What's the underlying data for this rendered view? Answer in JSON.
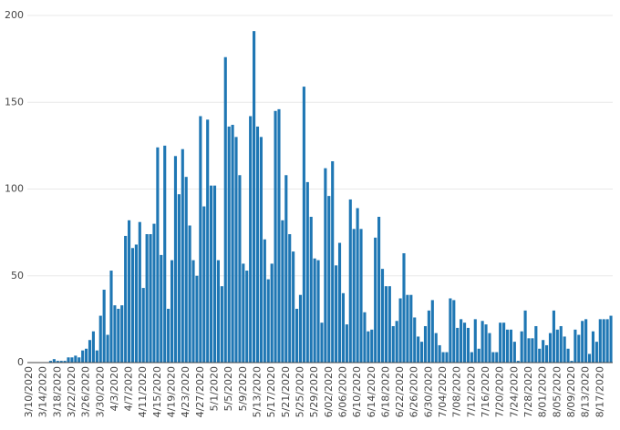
{
  "chart_data": {
    "type": "bar",
    "categories": [
      "3/10/2020",
      null,
      null,
      null,
      "3/14/2020",
      null,
      null,
      null,
      "3/18/2020",
      null,
      null,
      null,
      "3/22/2020",
      null,
      null,
      null,
      "3/26/2020",
      null,
      null,
      null,
      "3/30/2020",
      null,
      null,
      null,
      "4/3/2020",
      null,
      null,
      null,
      "4/7/2020",
      null,
      null,
      null,
      "4/11/2020",
      null,
      null,
      null,
      "4/15/2020",
      null,
      null,
      null,
      "4/19/2020",
      null,
      null,
      null,
      "4/23/2020",
      null,
      null,
      null,
      "4/27/2020",
      null,
      null,
      null,
      "5/1/2020",
      null,
      null,
      null,
      "5/5/2020",
      null,
      null,
      null,
      "5/9/2020",
      null,
      null,
      null,
      "5/13/2020",
      null,
      null,
      null,
      "5/17/2020",
      null,
      null,
      null,
      "5/21/2020",
      null,
      null,
      null,
      "5/25/2020",
      null,
      null,
      null,
      "5/29/2020",
      null,
      null,
      null,
      "6/02/2020",
      null,
      null,
      null,
      "6/06/2020",
      null,
      null,
      null,
      "6/10/2020",
      null,
      null,
      null,
      "6/14/2020",
      null,
      null,
      null,
      "6/18/2020",
      null,
      null,
      null,
      "6/22/2020",
      null,
      null,
      null,
      "6/26/2020",
      null,
      null,
      null,
      "6/30/2020",
      null,
      null,
      null,
      "7/04/2020",
      null,
      null,
      null,
      "7/08/2020",
      null,
      null,
      null,
      "7/12/2020",
      null,
      null,
      null,
      "7/16/2020",
      null,
      null,
      null,
      "7/20/2020",
      null,
      null,
      null,
      "7/24/2020",
      null,
      null,
      null,
      "7/28/2020",
      null,
      null,
      null,
      "8/01/2020",
      null,
      null,
      null,
      "8/05/2020",
      null,
      null,
      null,
      "8/09/2020",
      null,
      null,
      null,
      "8/13/2020",
      null,
      null,
      null,
      "8/17/2020",
      null,
      null,
      null
    ],
    "values": [
      0,
      0,
      0,
      0,
      0,
      0,
      1,
      2,
      1,
      1,
      1,
      3,
      3,
      4,
      3,
      7,
      8,
      13,
      18,
      7,
      27,
      42,
      16,
      53,
      33,
      31,
      33,
      73,
      82,
      66,
      68,
      81,
      43,
      74,
      74,
      80,
      124,
      62,
      125,
      31,
      59,
      119,
      97,
      123,
      107,
      79,
      59,
      50,
      142,
      90,
      140,
      102,
      102,
      59,
      44,
      176,
      136,
      137,
      130,
      108,
      57,
      53,
      142,
      191,
      136,
      130,
      71,
      48,
      57,
      145,
      146,
      82,
      108,
      74,
      64,
      31,
      39,
      159,
      104,
      84,
      60,
      59,
      23,
      112,
      96,
      116,
      56,
      69,
      40,
      22,
      94,
      77,
      89,
      77,
      29,
      18,
      19,
      72,
      84,
      54,
      44,
      44,
      21,
      24,
      37,
      63,
      39,
      39,
      26,
      15,
      12,
      21,
      30,
      36,
      17,
      10,
      6,
      6,
      37,
      36,
      20,
      25,
      23,
      20,
      6,
      25,
      8,
      24,
      22,
      17,
      6,
      6,
      23,
      23,
      19,
      19,
      12,
      1,
      18,
      30,
      14,
      14,
      21,
      8,
      13,
      10,
      17,
      30,
      19,
      21,
      15,
      8,
      1,
      19,
      16,
      24,
      25,
      5,
      18,
      12,
      25,
      25,
      25,
      27
    ],
    "color": "#1f77b4",
    "ylim": [
      0,
      200
    ],
    "yticks": [
      0,
      50,
      100,
      150,
      200
    ],
    "grid": true
  }
}
